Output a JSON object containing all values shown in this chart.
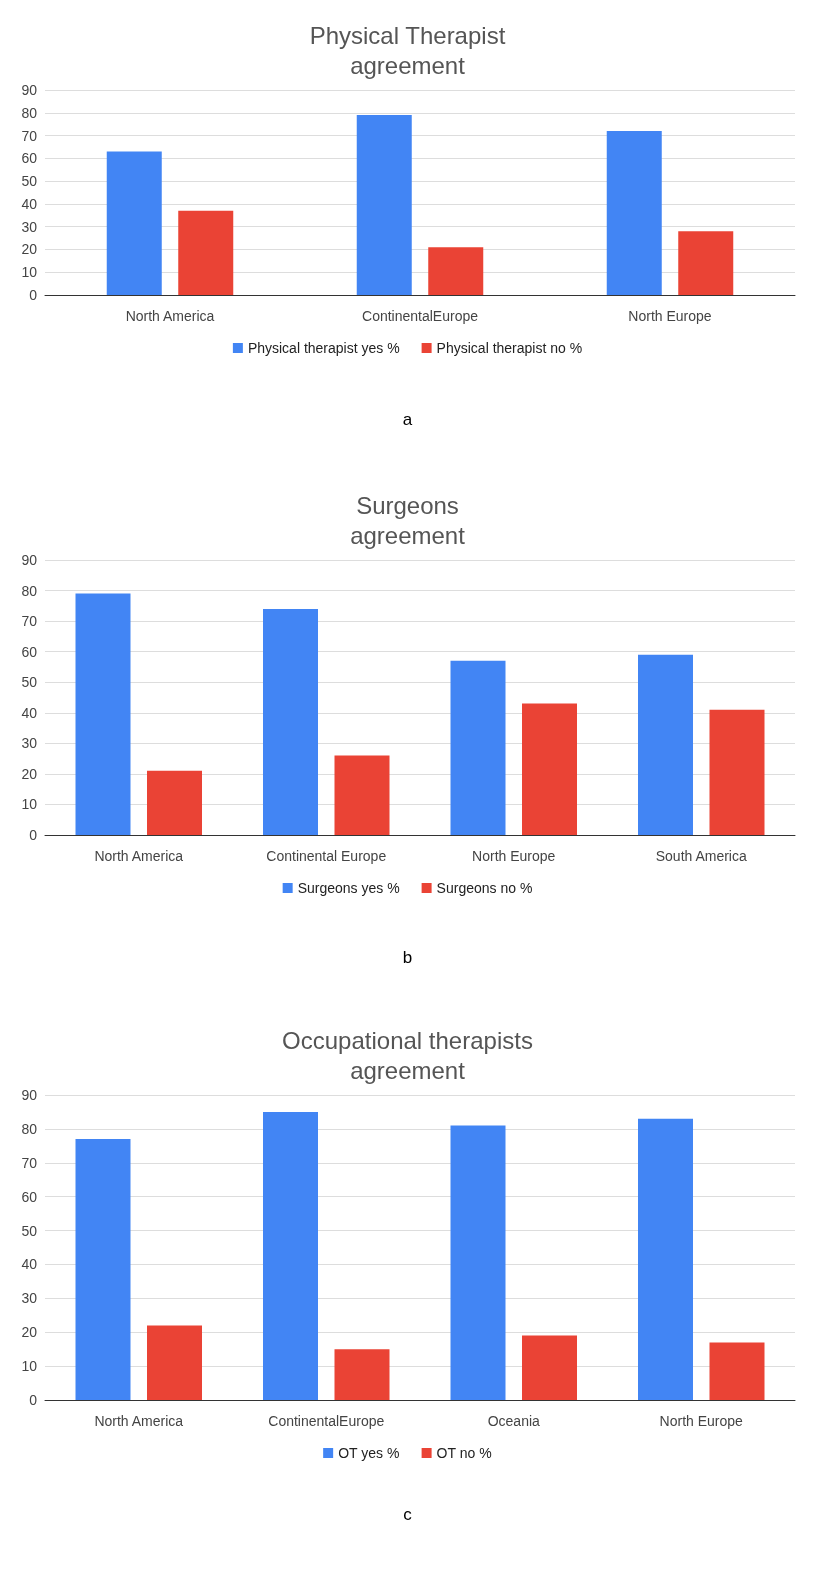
{
  "chart_data": [
    {
      "type": "bar",
      "title": "Physical Therapist\nagreement",
      "categories": [
        "North America",
        "ContinentalEurope",
        "North Europe"
      ],
      "series": [
        {
          "name": "Physical therapist yes %",
          "color": "#4285f4",
          "values": [
            63,
            79,
            72
          ]
        },
        {
          "name": "Physical therapist no %",
          "color": "#ea4335",
          "values": [
            37,
            21,
            28
          ]
        }
      ],
      "ylim": [
        0,
        90
      ],
      "yticks": [
        0,
        10,
        20,
        30,
        40,
        50,
        60,
        70,
        80,
        90
      ],
      "grid": "y",
      "legend": "bottom",
      "annotations": [
        "a"
      ]
    },
    {
      "type": "bar",
      "title": "Surgeons\nagreement",
      "categories": [
        "North America",
        "Continental Europe",
        "North Europe",
        "South America"
      ],
      "series": [
        {
          "name": "Surgeons yes %",
          "color": "#4285f4",
          "values": [
            79,
            74,
            57,
            59
          ]
        },
        {
          "name": "Surgeons no %",
          "color": "#ea4335",
          "values": [
            21,
            26,
            43,
            41
          ]
        }
      ],
      "ylim": [
        0,
        90
      ],
      "yticks": [
        0,
        10,
        20,
        30,
        40,
        50,
        60,
        70,
        80,
        90
      ],
      "grid": "y",
      "legend": "bottom",
      "annotations": [
        "b"
      ]
    },
    {
      "type": "bar",
      "title": "Occupational therapists\nagreement",
      "categories": [
        "North America",
        "ContinentalEurope",
        "Oceania",
        "North Europe"
      ],
      "series": [
        {
          "name": "OT yes %",
          "color": "#4285f4",
          "values": [
            77,
            85,
            81,
            83
          ]
        },
        {
          "name": "OT no %",
          "color": "#ea4335",
          "values": [
            22,
            15,
            19,
            17
          ]
        }
      ],
      "ylim": [
        0,
        90
      ],
      "yticks": [
        0,
        10,
        20,
        30,
        40,
        50,
        60,
        70,
        80,
        90
      ],
      "grid": "y",
      "legend": "bottom",
      "annotations": [
        "c"
      ]
    }
  ]
}
